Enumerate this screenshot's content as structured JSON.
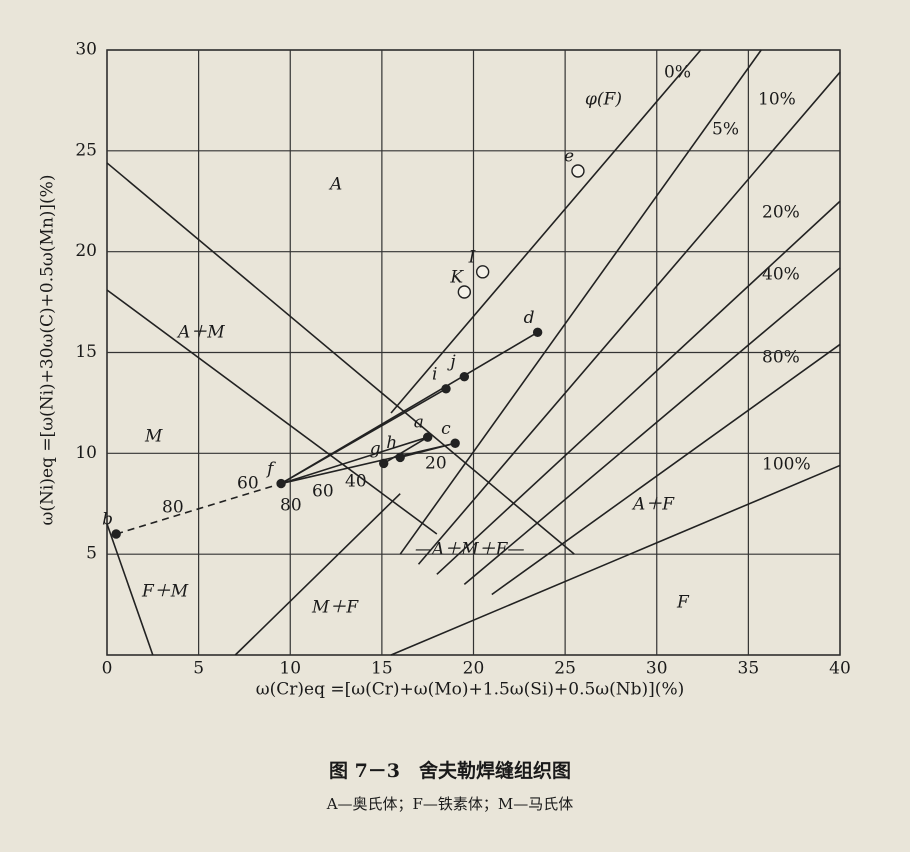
{
  "chart_data": {
    "type": "line",
    "x_label": "ω(Cr)eq =[ω(Cr)+ω(Mo)+1.5ω(Si)+0.5ω(Nb)](%)",
    "y_label": "ω(Ni)eq =[ω(Ni)+30ω(C)+0.5ω(Mn)](%)",
    "xlim": [
      0,
      40
    ],
    "ylim": [
      0,
      30
    ],
    "xticks": [
      0,
      5,
      10,
      15,
      20,
      25,
      30,
      35,
      40
    ],
    "yticks": [
      5,
      10,
      15,
      20,
      25,
      30
    ],
    "grid": true,
    "color": "#222222",
    "legend_title": "φ(F)",
    "series": [
      {
        "name": "0%",
        "x": [
          15.5,
          32.4
        ],
        "y": [
          12,
          30
        ]
      },
      {
        "name": "5%",
        "x": [
          16,
          35.7
        ],
        "y": [
          5,
          30
        ]
      },
      {
        "name": "10%",
        "x": [
          17,
          40
        ],
        "y": [
          4.5,
          28.9
        ]
      },
      {
        "name": "20%",
        "x": [
          18,
          40
        ],
        "y": [
          4,
          22.5
        ]
      },
      {
        "name": "40%",
        "x": [
          19.5,
          40
        ],
        "y": [
          3.5,
          19.2
        ]
      },
      {
        "name": "80%",
        "x": [
          21,
          40
        ],
        "y": [
          3,
          15.4
        ]
      },
      {
        "name": "100%",
        "x": [
          15.5,
          40
        ],
        "y": [
          0,
          9.4
        ]
      }
    ],
    "boundaries": [
      {
        "x": [
          0,
          25.5
        ],
        "y": [
          24.4,
          5
        ]
      },
      {
        "x": [
          0,
          18
        ],
        "y": [
          18.1,
          6
        ]
      },
      {
        "x": [
          0,
          2.5
        ],
        "y": [
          6.5,
          0
        ]
      },
      {
        "x": [
          7,
          16
        ],
        "y": [
          0,
          8
        ]
      }
    ],
    "points": [
      {
        "label": "a",
        "x": 17.5,
        "y": 10.8,
        "open": false
      },
      {
        "label": "c",
        "x": 19,
        "y": 10.5,
        "open": false
      },
      {
        "label": "d",
        "x": 23.5,
        "y": 16,
        "open": false
      },
      {
        "label": "e",
        "x": 25.7,
        "y": 24,
        "open": true
      },
      {
        "label": "f",
        "x": 9.5,
        "y": 8.5,
        "open": false
      },
      {
        "label": "g",
        "x": 15.1,
        "y": 9.5,
        "open": false
      },
      {
        "label": "h",
        "x": 16,
        "y": 9.8,
        "open": false
      },
      {
        "label": "i",
        "x": 18.5,
        "y": 13.2,
        "open": false
      },
      {
        "label": "j",
        "x": 19.5,
        "y": 13.8,
        "open": false
      },
      {
        "label": "K",
        "x": 19.5,
        "y": 18,
        "open": true
      },
      {
        "label": "I",
        "x": 20.5,
        "y": 19,
        "open": true
      },
      {
        "label": "b",
        "x": 0.5,
        "y": 6,
        "open": false
      }
    ],
    "tie_lines": [
      {
        "x": [
          9.5,
          23.5
        ],
        "y": [
          8.5,
          16
        ]
      },
      {
        "x": [
          9.5,
          18.5
        ],
        "y": [
          8.5,
          13.2
        ]
      },
      {
        "x": [
          9.5,
          17.5
        ],
        "y": [
          8.5,
          10.8
        ]
      },
      {
        "x": [
          9.5,
          19
        ],
        "y": [
          8.5,
          10.5
        ]
      },
      {
        "x": [
          15.1,
          17.5
        ],
        "y": [
          9.5,
          10.8
        ]
      },
      {
        "x": [
          16,
          19
        ],
        "y": [
          9.8,
          10.5
        ]
      }
    ],
    "dashed_line": {
      "x": [
        0.5,
        9.5
      ],
      "y": [
        6,
        8.5
      ]
    },
    "regions": [
      "A",
      "A＋M",
      "M",
      "F＋M",
      "M＋F",
      "—A＋M＋F—",
      "A＋F",
      "F"
    ],
    "annotations": [
      "80",
      "60",
      "60",
      "40",
      "20",
      "80"
    ]
  },
  "caption": {
    "title": "图 7－3　舍夫勒焊缝组织图",
    "note": "A—奥氏体；F—铁素体；M—马氏体"
  }
}
